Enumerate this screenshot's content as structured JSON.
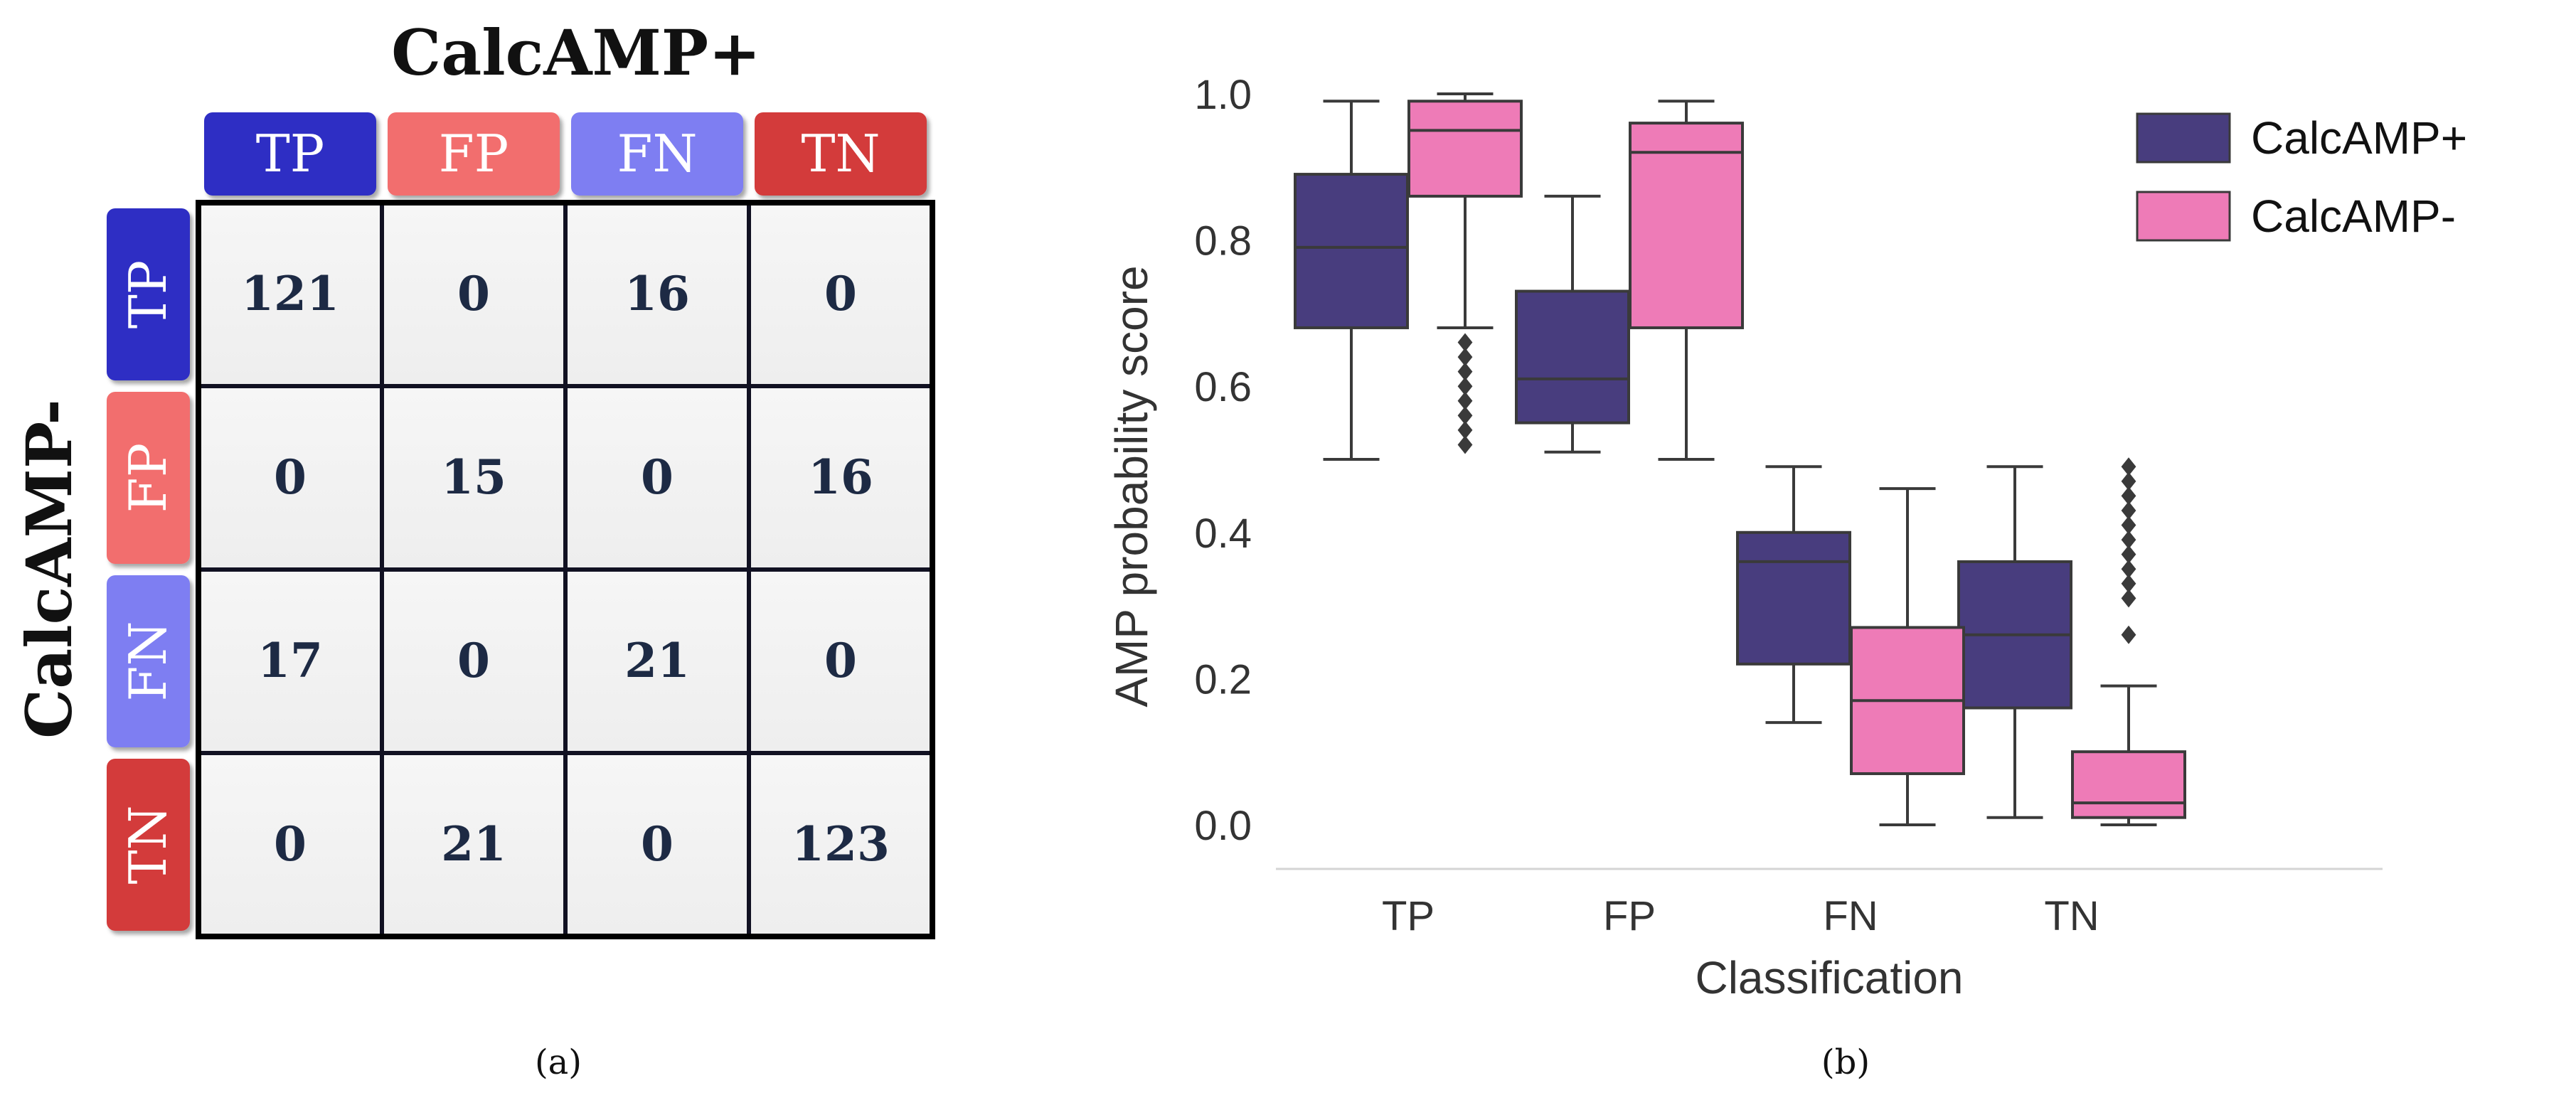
{
  "chart_data": [
    {
      "type": "table",
      "panel_label": "(a)",
      "col_title": "CalcAMP+",
      "row_title": "CalcAMP-",
      "col_headers": [
        "TP",
        "FP",
        "FN",
        "TN"
      ],
      "row_headers": [
        "TP",
        "FP",
        "FN",
        "TN"
      ],
      "cells": [
        [
          "121",
          "0",
          "16",
          "0"
        ],
        [
          "0",
          "15",
          "0",
          "16"
        ],
        [
          "17",
          "0",
          "21",
          "0"
        ],
        [
          "0",
          "21",
          "0",
          "123"
        ]
      ],
      "header_colors": [
        "#2E2EC4",
        "#F26E6E",
        "#7E7EF2",
        "#D33A3A"
      ]
    },
    {
      "type": "box",
      "panel_label": "(b)",
      "xlabel": "Classification",
      "ylabel": "AMP probability score",
      "categories": [
        "TP",
        "FP",
        "FN",
        "TN"
      ],
      "ylim": [
        -0.04,
        1.04
      ],
      "yticks": [
        "0.0",
        "0.2",
        "0.4",
        "0.6",
        "0.8",
        "1.0"
      ],
      "legend_position": "top-right",
      "series": [
        {
          "name": "CalcAMP+",
          "color": "#483D7E",
          "boxes": [
            {
              "whisker_low": 0.5,
              "q1": 0.68,
              "median": 0.79,
              "q3": 0.89,
              "whisker_high": 0.99,
              "outliers": []
            },
            {
              "whisker_low": 0.51,
              "q1": 0.55,
              "median": 0.61,
              "q3": 0.73,
              "whisker_high": 0.86,
              "outliers": []
            },
            {
              "whisker_low": 0.14,
              "q1": 0.22,
              "median": 0.36,
              "q3": 0.4,
              "whisker_high": 0.49,
              "outliers": []
            },
            {
              "whisker_low": 0.01,
              "q1": 0.16,
              "median": 0.26,
              "q3": 0.36,
              "whisker_high": 0.49,
              "outliers": []
            }
          ]
        },
        {
          "name": "CalcAMP-",
          "color": "#EE7BB7",
          "boxes": [
            {
              "whisker_low": 0.68,
              "q1": 0.86,
              "median": 0.95,
              "q3": 0.99,
              "whisker_high": 1.0,
              "outliers": [
                0.52,
                0.54,
                0.56,
                0.58,
                0.6,
                0.62,
                0.64,
                0.66
              ]
            },
            {
              "whisker_low": 0.5,
              "q1": 0.68,
              "median": 0.92,
              "q3": 0.96,
              "whisker_high": 0.99,
              "outliers": []
            },
            {
              "whisker_low": 0.0,
              "q1": 0.07,
              "median": 0.17,
              "q3": 0.27,
              "whisker_high": 0.46,
              "outliers": []
            },
            {
              "whisker_low": 0.0,
              "q1": 0.01,
              "median": 0.03,
              "q3": 0.1,
              "whisker_high": 0.19,
              "outliers": [
                0.26,
                0.31,
                0.33,
                0.35,
                0.37,
                0.39,
                0.41,
                0.43,
                0.45,
                0.47,
                0.49
              ]
            }
          ]
        }
      ]
    }
  ]
}
